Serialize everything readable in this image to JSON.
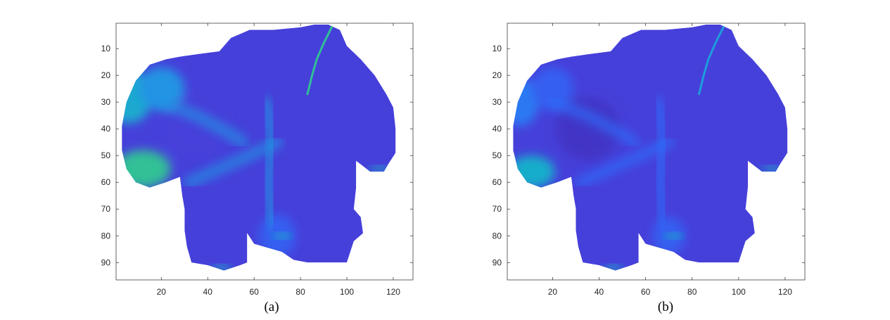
{
  "chart_data": [
    {
      "type": "heatmap",
      "caption": "(a)",
      "xlabel": "",
      "ylabel": "",
      "xlim": [
        1,
        128
      ],
      "ylim": [
        1,
        96
      ],
      "y_reversed": true,
      "xticks": [
        20,
        40,
        60,
        80,
        100,
        120
      ],
      "yticks": [
        10,
        20,
        30,
        40,
        50,
        60,
        70,
        80,
        90
      ],
      "colormap": "parula",
      "blobs": [
        {
          "x": 6,
          "y": 28,
          "rx": 10,
          "ry": 10,
          "value": 0.4
        },
        {
          "x": 12,
          "y": 55,
          "rx": 12,
          "ry": 7,
          "value": 0.55
        },
        {
          "x": 20,
          "y": 25,
          "rx": 10,
          "ry": 8,
          "value": 0.32
        },
        {
          "x": 70,
          "y": 80,
          "rx": 8,
          "ry": 8,
          "value": 0.18
        },
        {
          "x": 35,
          "y": 40,
          "rx": 14,
          "ry": 12,
          "value": 0.1
        }
      ],
      "ridge_value": 0.55
    },
    {
      "type": "heatmap",
      "caption": "(b)",
      "xlabel": "",
      "ylabel": "",
      "xlim": [
        1,
        128
      ],
      "ylim": [
        1,
        96
      ],
      "y_reversed": true,
      "xticks": [
        20,
        40,
        60,
        80,
        100,
        120
      ],
      "yticks": [
        10,
        20,
        30,
        40,
        50,
        60,
        70,
        80,
        90
      ],
      "colormap": "parula",
      "blobs": [
        {
          "x": 6,
          "y": 30,
          "rx": 8,
          "ry": 9,
          "value": 0.25
        },
        {
          "x": 11,
          "y": 56,
          "rx": 10,
          "ry": 6,
          "value": 0.42
        },
        {
          "x": 20,
          "y": 25,
          "rx": 9,
          "ry": 8,
          "value": 0.18
        },
        {
          "x": 70,
          "y": 80,
          "rx": 7,
          "ry": 7,
          "value": 0.18
        },
        {
          "x": 35,
          "y": 40,
          "rx": 14,
          "ry": 12,
          "value": 0.06
        }
      ],
      "ridge_value": 0.35
    }
  ],
  "colors": {
    "parula_stops": [
      "#3e26a8",
      "#4743e0",
      "#2c6ef9",
      "#1e99e0",
      "#17b3c4",
      "#31c194",
      "#7fc55d",
      "#c7bd3a",
      "#f7b93a",
      "#f9e923"
    ],
    "axis": "#262626",
    "background": "#ffffff"
  }
}
